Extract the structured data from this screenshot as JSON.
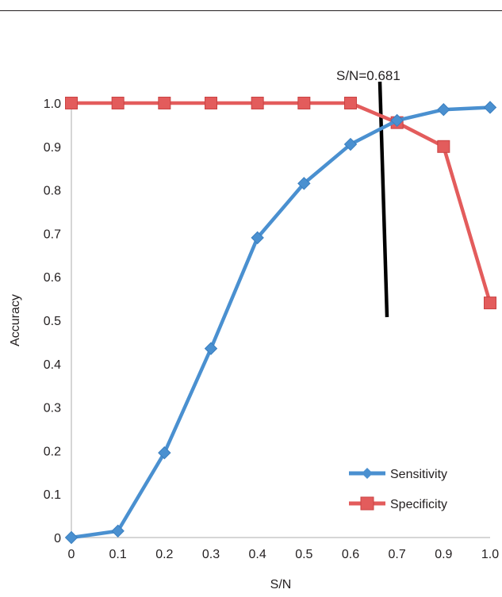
{
  "chart_data": {
    "type": "line",
    "xlabel": "S/N",
    "ylabel": "Accuracy",
    "x": [
      0,
      0.1,
      0.2,
      0.3,
      0.4,
      0.5,
      0.6,
      0.7,
      0.9,
      1.0
    ],
    "x_tick_labels": [
      "0",
      "0.1",
      "0.2",
      "0.3",
      "0.4",
      "0.5",
      "0.6",
      "0.7",
      "0.9",
      "1.0"
    ],
    "y_tick_labels": [
      "0",
      "0.1",
      "0.2",
      "0.3",
      "0.4",
      "0.5",
      "0.6",
      "0.7",
      "0.8",
      "0.9",
      "1.0"
    ],
    "ylim": [
      0,
      1.0
    ],
    "series": [
      {
        "name": "Sensitivity",
        "color": "#4a90d0",
        "marker": "diamond",
        "values": [
          0.0,
          0.015,
          0.195,
          0.435,
          0.69,
          0.815,
          0.905,
          0.96,
          0.985,
          0.99
        ]
      },
      {
        "name": "Specificity",
        "color": "#e35c5c",
        "marker": "square",
        "values": [
          1.0,
          1.0,
          1.0,
          1.0,
          1.0,
          1.0,
          1.0,
          0.955,
          0.9,
          0.54
        ]
      }
    ],
    "annotation": {
      "text": "S/N=0.681",
      "color": "#000000"
    },
    "grid": false,
    "legend_position": "bottom-right"
  }
}
